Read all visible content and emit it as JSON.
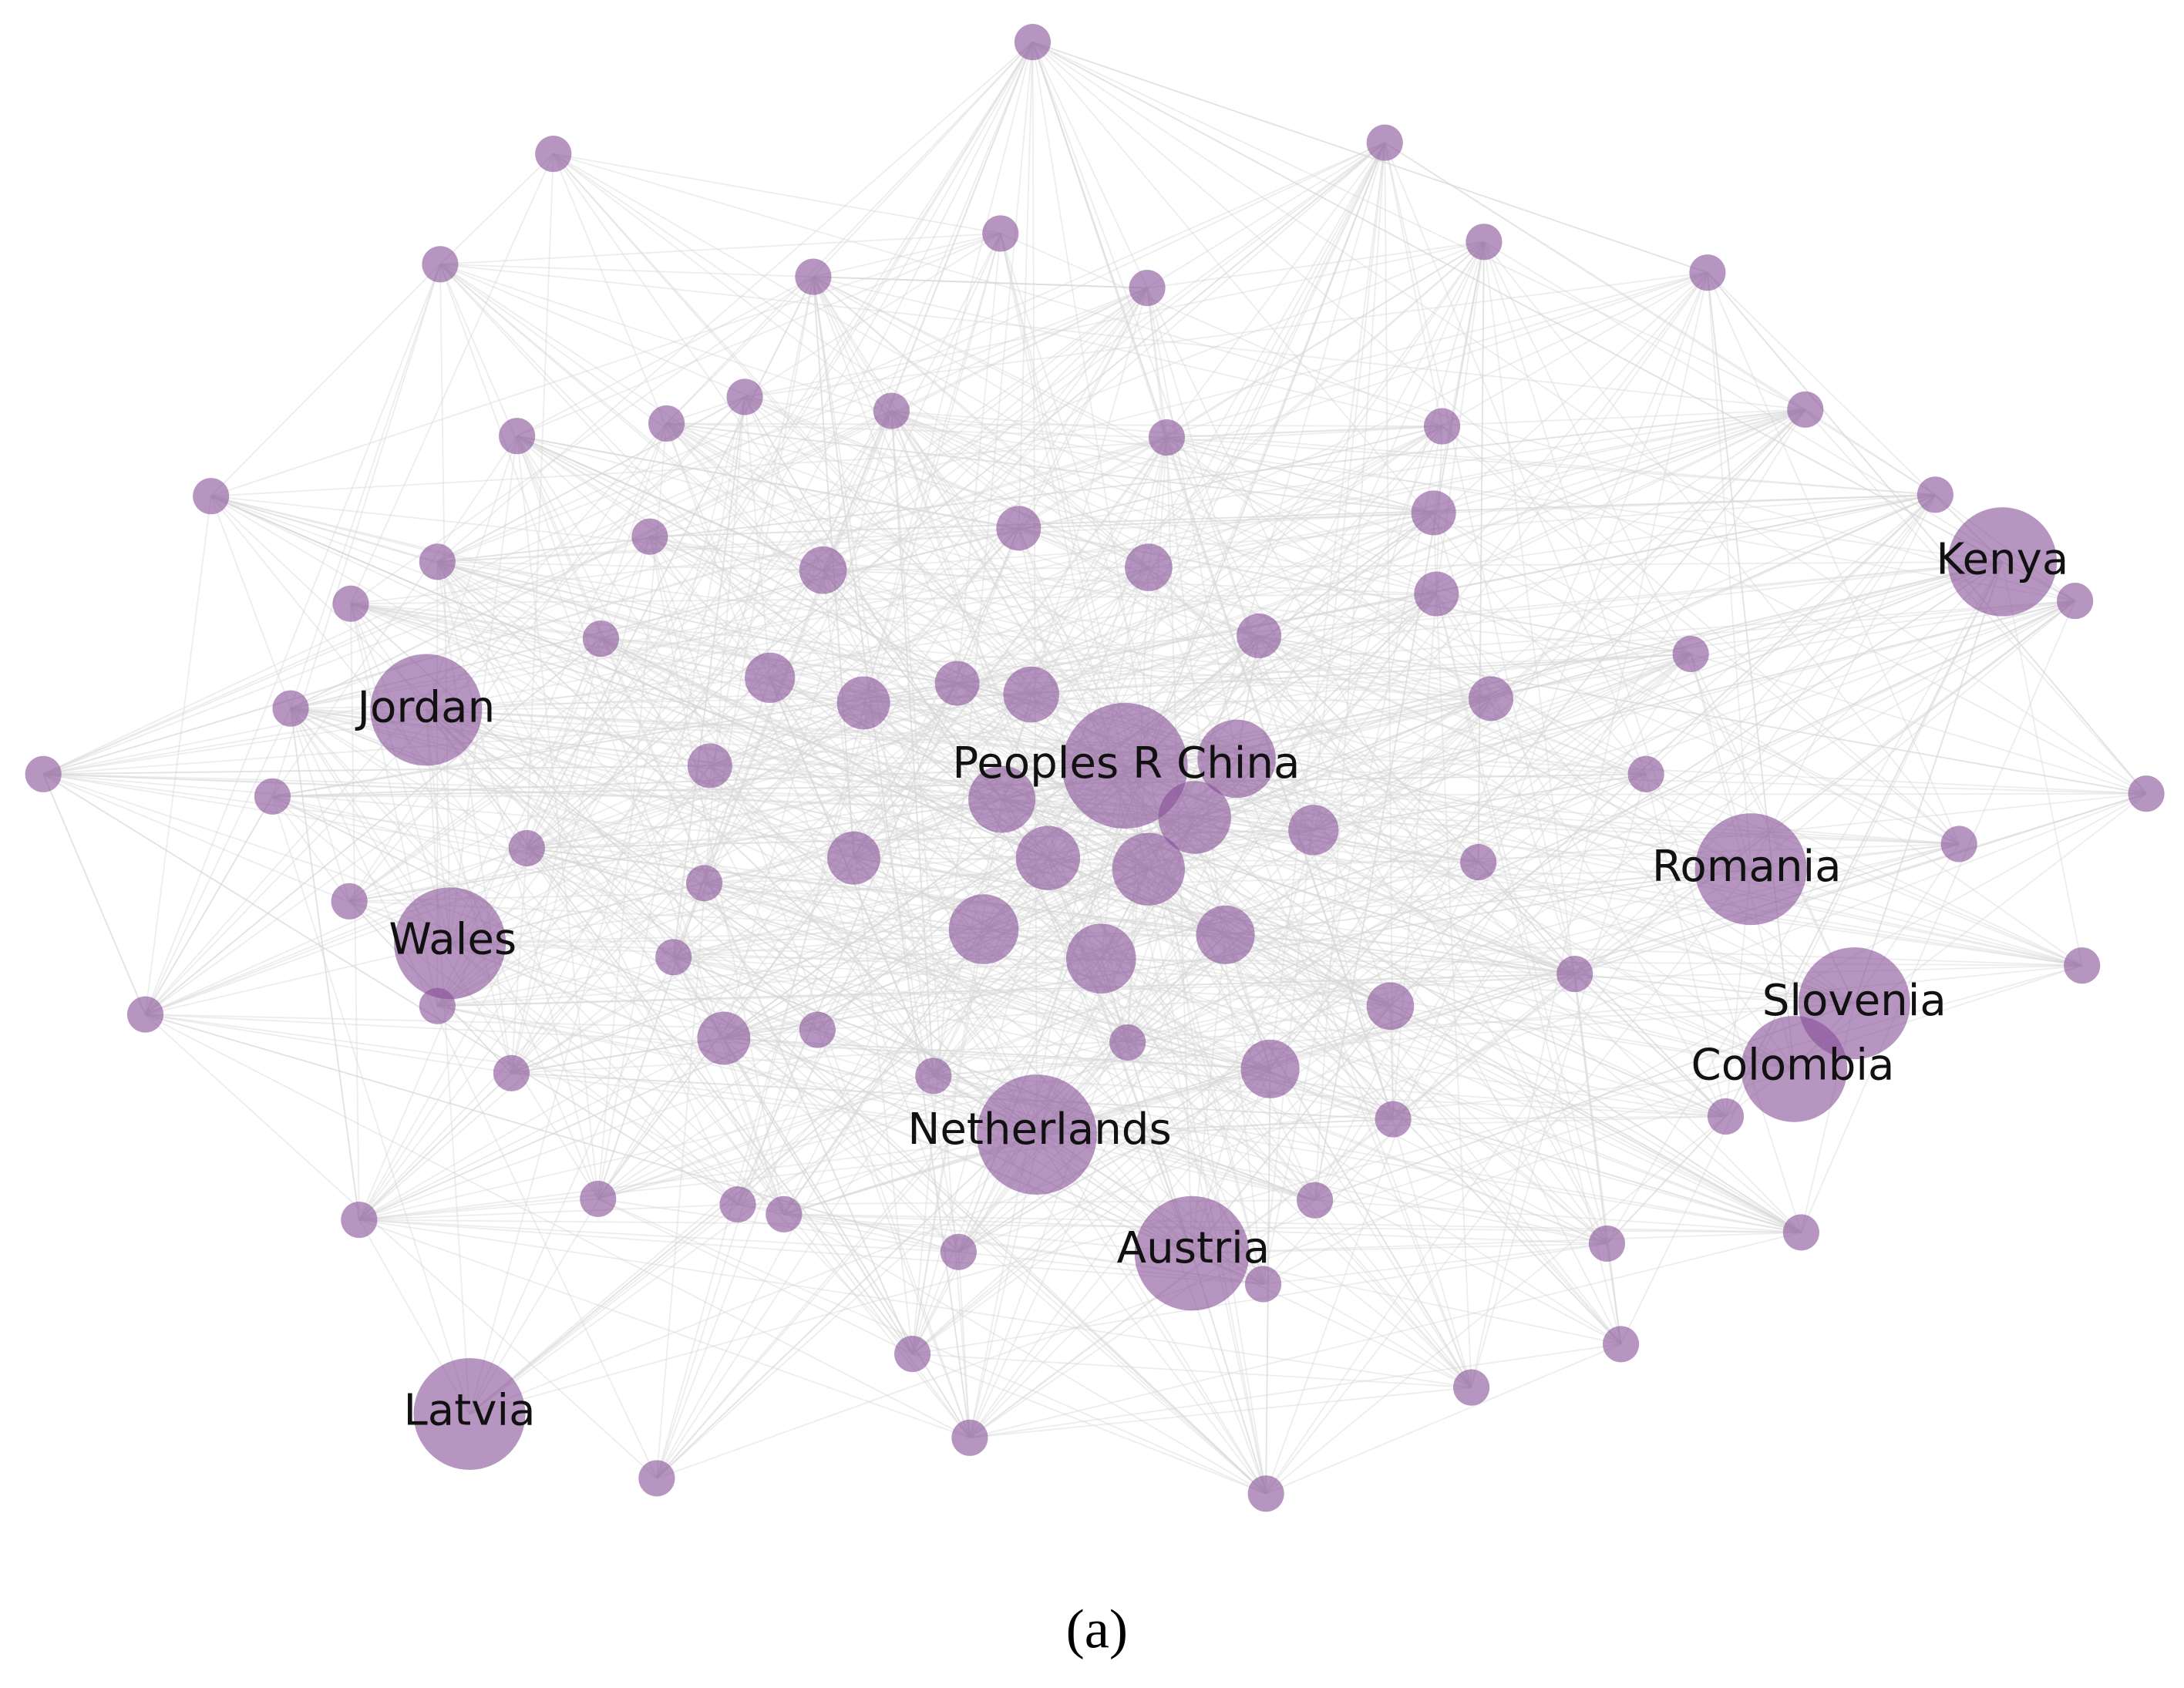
{
  "labels": [
    "Kenya",
    "Jordan",
    "Peoples R China",
    "Romania",
    "Wales",
    "Slovenia",
    "Colombia",
    "Netherlands",
    "Austria",
    "Latvia"
  ],
  "caption": "(a)"
}
